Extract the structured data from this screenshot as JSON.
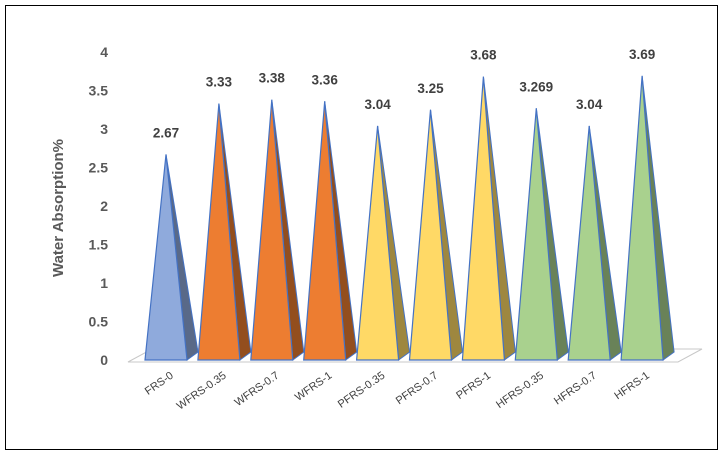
{
  "chart_data": {
    "type": "bar",
    "style": "3d-pyramid",
    "title": "",
    "xlabel": "",
    "ylabel": "Water Absorption%",
    "ylim": [
      0,
      4
    ],
    "yticks": [
      "0",
      "0.5",
      "1",
      "1.5",
      "2",
      "2.5",
      "3",
      "3.5",
      "4"
    ],
    "grid": false,
    "legend": "none",
    "categories": [
      "FRS-0",
      "WFRS-0.35",
      "WFRS-0.7",
      "WFRS-1",
      "PFRS-0.35",
      "PFRS-0.7",
      "PFRS-1",
      "HFRS-0.35",
      "HFRS-0.7",
      "HFRS-1"
    ],
    "values": [
      2.67,
      3.33,
      3.38,
      3.36,
      3.04,
      3.25,
      3.68,
      3.269,
      3.04,
      3.69
    ],
    "data_labels": [
      "2.67",
      "3.33",
      "3.38",
      "3.36",
      "3.04",
      "3.25",
      "3.68",
      "3.269",
      "3.04",
      "3.69"
    ],
    "colors": [
      "#8FAADC",
      "#ED7D31",
      "#ED7D31",
      "#ED7D31",
      "#FFD966",
      "#FFD966",
      "#FFD966",
      "#A9D18E",
      "#A9D18E",
      "#A9D18E"
    ],
    "edge_color": "#4472C4"
  }
}
